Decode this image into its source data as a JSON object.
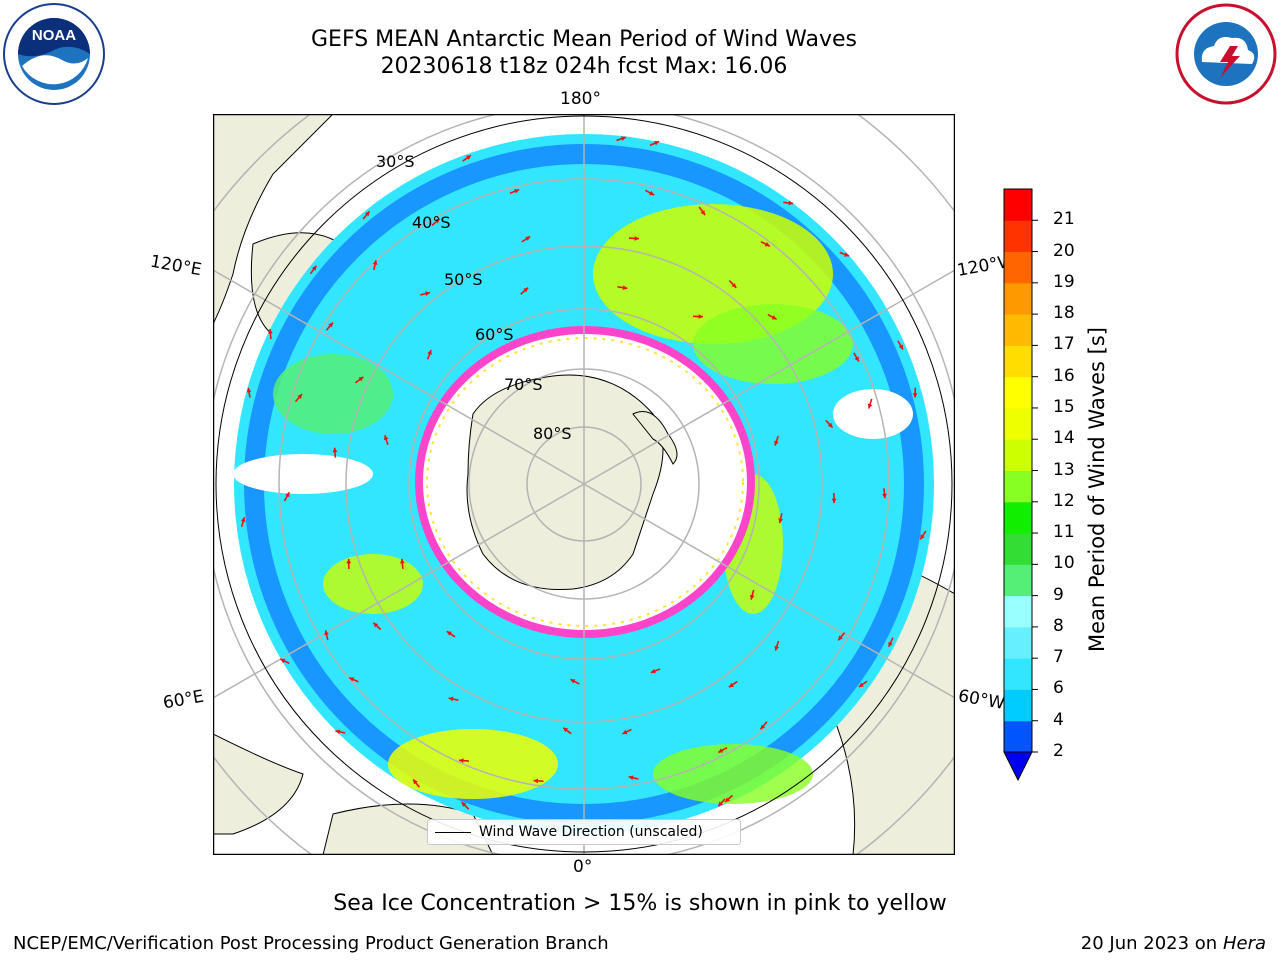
{
  "title": {
    "line1": "GEFS MEAN Antarctic Mean Period of Wind Waves",
    "line2": "20230618 t18z 024h fcst   Max: 16.06"
  },
  "map": {
    "projection": "south-polar-stereographic",
    "longitude_labels": {
      "top": "180°",
      "left_upper": "120°E",
      "right_upper": "120°W",
      "left_lower": "60°E",
      "right_lower": "60°W",
      "bottom": "0°"
    },
    "latitude_labels": [
      "30°S",
      "40°S",
      "50°S",
      "60°S",
      "70°S",
      "80°S"
    ],
    "colors": {
      "land": "#eeeedd",
      "open_water": "#ffffff",
      "graticule": "#b4b4b4",
      "arrows": "#ee1111",
      "sea_ice": "#ff44cc"
    }
  },
  "legend": {
    "label": "Wind Wave Direction (unscaled)"
  },
  "colorbar": {
    "title": "Mean Period of Wind Waves [s]",
    "ticks": [
      "2",
      "4",
      "6",
      "7",
      "8",
      "9",
      "10",
      "11",
      "12",
      "13",
      "14",
      "15",
      "16",
      "17",
      "18",
      "19",
      "20",
      "21"
    ],
    "colors": [
      "#0055ff",
      "#00ccff",
      "#33e6ff",
      "#66f0ff",
      "#99ffff",
      "#55ee77",
      "#33dd33",
      "#11ee00",
      "#88ff22",
      "#ccff00",
      "#eeff00",
      "#ffff00",
      "#ffdd00",
      "#ffbb00",
      "#ff9900",
      "#ff6600",
      "#ff3300",
      "#ff0000"
    ],
    "underflow_color": "#0000ee"
  },
  "caption": "Sea Ice Concentration > 15% is shown in pink to yellow",
  "footer": {
    "left": "NCEP/EMC/Verification Post Processing Product Generation Branch",
    "date": "20 Jun 2023 on",
    "host": "Hera"
  },
  "logos": {
    "left": "NOAA",
    "right": "NATIONAL WEATHER SERVICE"
  }
}
